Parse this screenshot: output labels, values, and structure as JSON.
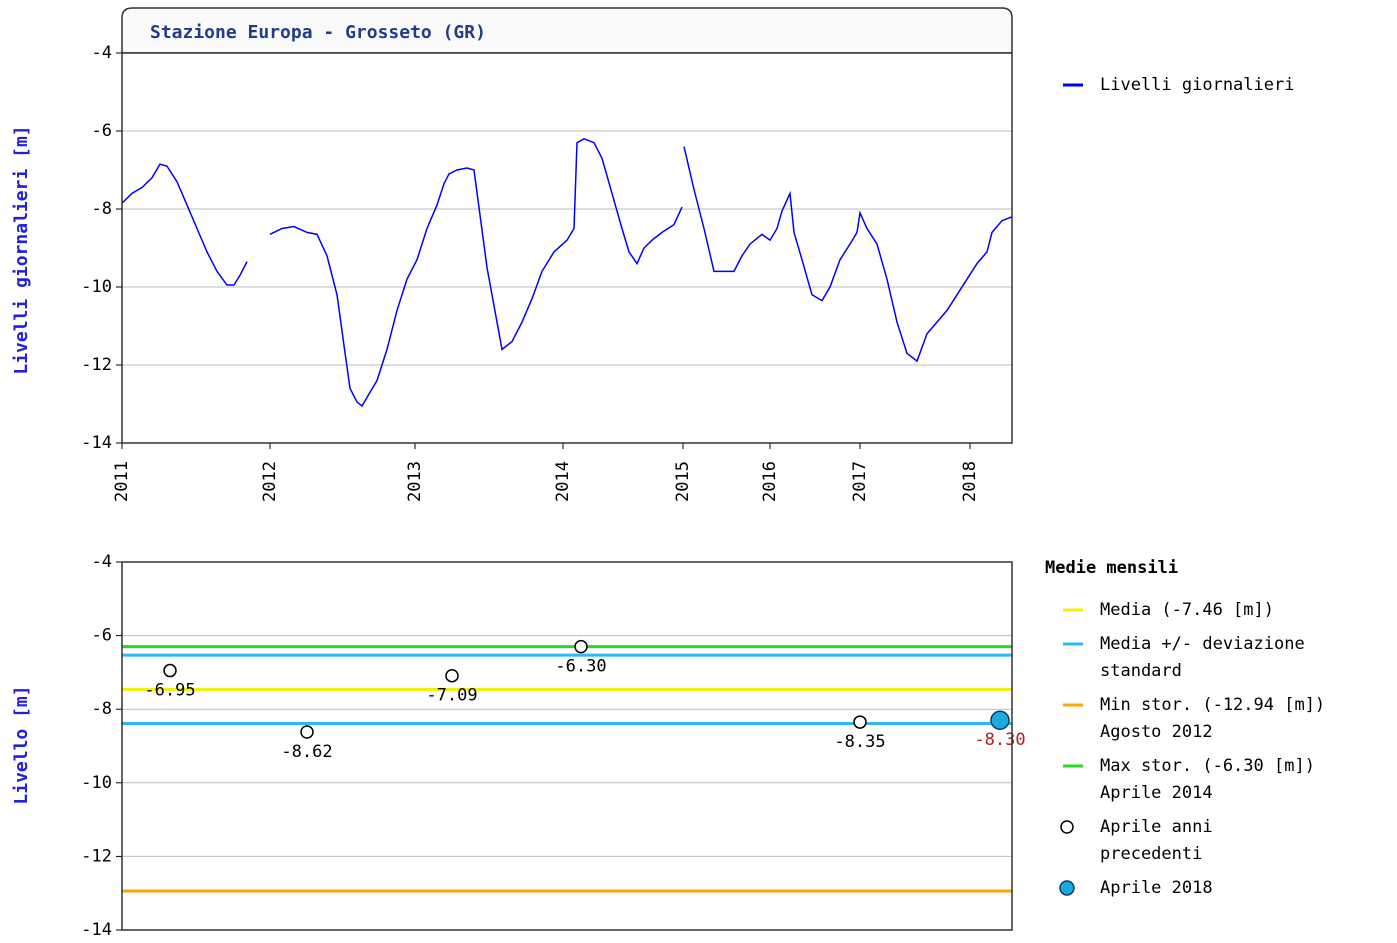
{
  "chart_data": [
    {
      "type": "line",
      "title": "Stazione Europa - Grosseto (GR)",
      "ylabel": "Livelli giornalieri [m]",
      "xlim": [
        0,
        890
      ],
      "xticks": [
        {
          "value": 0,
          "label": "2011"
        },
        {
          "value": 148,
          "label": "2012"
        },
        {
          "value": 293,
          "label": "2013"
        },
        {
          "value": 441,
          "label": "2014"
        },
        {
          "value": 561,
          "label": "2015"
        },
        {
          "value": 648,
          "label": "2016"
        },
        {
          "value": 738,
          "label": "2017"
        },
        {
          "value": 848,
          "label": "2018"
        }
      ],
      "ylim": [
        -14,
        -4
      ],
      "yticks": [
        -14,
        -12,
        -10,
        -8,
        -6,
        -4
      ],
      "grid": true,
      "x": [
        0,
        10,
        20,
        30,
        38,
        45,
        55,
        65,
        75,
        85,
        95,
        105,
        112,
        118,
        125,
        136,
        148,
        160,
        172,
        185,
        195,
        205,
        215,
        222,
        228,
        235,
        240,
        248,
        255,
        265,
        275,
        285,
        295,
        305,
        315,
        322,
        327,
        335,
        345,
        352,
        365,
        380,
        390,
        400,
        410,
        420,
        432,
        445,
        452,
        455,
        462,
        472,
        480,
        490,
        500,
        507,
        515,
        522,
        530,
        540,
        552,
        560,
        561,
        562,
        572,
        582,
        592,
        602,
        612,
        620,
        628,
        640,
        648,
        655,
        660,
        668,
        672,
        680,
        690,
        700,
        708,
        718,
        728,
        735,
        738,
        745,
        755,
        765,
        775,
        785,
        795,
        805,
        815,
        825,
        835,
        845,
        855,
        865,
        870,
        880,
        890
      ],
      "series": [
        {
          "name": "Livelli giornalieri",
          "color": "#0000ff",
          "values": [
            -7.85,
            -7.6,
            -7.45,
            -7.2,
            -6.85,
            -6.9,
            -7.3,
            -7.9,
            -8.5,
            -9.1,
            -9.6,
            -9.95,
            -9.95,
            -9.7,
            -9.35,
            null,
            -8.65,
            -8.5,
            -8.45,
            -8.6,
            -8.65,
            -9.2,
            -10.2,
            -11.5,
            -12.6,
            -12.95,
            -13.05,
            -12.7,
            -12.4,
            -11.6,
            -10.6,
            -9.8,
            -9.3,
            -8.5,
            -7.9,
            -7.35,
            -7.1,
            -7.0,
            -6.95,
            -7.0,
            -9.5,
            -11.6,
            -11.4,
            -10.9,
            -10.3,
            -9.6,
            -9.1,
            -8.8,
            -8.5,
            -6.3,
            -6.2,
            -6.3,
            -6.7,
            -7.6,
            -8.5,
            -9.1,
            -9.4,
            -9.0,
            -8.8,
            -8.6,
            -8.4,
            -7.95,
            null,
            -6.4,
            -7.5,
            -8.5,
            -9.6,
            -9.6,
            -9.6,
            -9.2,
            -8.9,
            -8.65,
            -8.8,
            -8.5,
            -8.05,
            -7.6,
            -8.6,
            -9.3,
            -10.2,
            -10.35,
            -10.0,
            -9.3,
            -8.9,
            -8.6,
            -8.1,
            -8.5,
            -8.9,
            -9.8,
            -10.9,
            -11.7,
            -11.9,
            -11.2,
            -10.9,
            -10.6,
            -10.2,
            -9.8,
            -9.4,
            -9.1,
            -8.6,
            -8.3,
            -8.2
          ]
        }
      ]
    },
    {
      "type": "scatter",
      "ylabel": "Livello [m]",
      "legend_title": "Medie mensili",
      "xlim": [
        0,
        890
      ],
      "ylim": [
        -14,
        -4
      ],
      "yticks": [
        -14,
        -12,
        -10,
        -8,
        -6,
        -4
      ],
      "grid": true,
      "hlines": [
        {
          "name": [
            "Media (-7.46 [m])"
          ],
          "color": "#f2f200",
          "values": [
            -7.46
          ]
        },
        {
          "name": [
            "Media +/- deviazione",
            "standard"
          ],
          "color": "#2fb8f5",
          "values": [
            -6.53,
            -8.39
          ]
        },
        {
          "name": [
            "Min stor. (-12.94 [m])",
            "Agosto 2012"
          ],
          "color": "#ffa500",
          "values": [
            -12.94
          ]
        },
        {
          "name": [
            "Max stor. (-6.30 [m])",
            "Aprile 2014"
          ],
          "color": "#22dd22",
          "values": [
            -6.3
          ]
        }
      ],
      "points": {
        "name": [
          "Aprile anni",
          "precedenti"
        ],
        "color": "#ffffff",
        "x": [
          48,
          185,
          330,
          459,
          738
        ],
        "values": [
          -6.95,
          -8.62,
          -7.09,
          -6.3,
          -8.35
        ],
        "value_labels": [
          "-6.95",
          "-8.62",
          "-7.09",
          "-6.30",
          "-8.35"
        ]
      },
      "current": {
        "name": [
          "Aprile 2018"
        ],
        "color": "#1ea8e0",
        "label_color": "#b02020",
        "x": [
          878
        ],
        "values": [
          -8.3
        ],
        "value_labels": [
          "-8.30"
        ]
      }
    }
  ]
}
